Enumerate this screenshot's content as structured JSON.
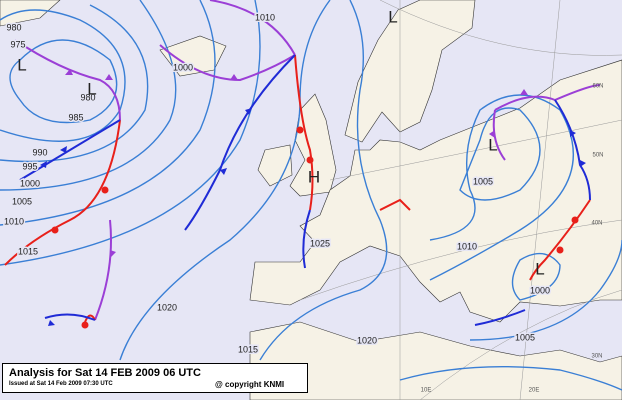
{
  "map": {
    "isobar_labels": [
      "980",
      "975",
      "980",
      "985",
      "990",
      "995",
      "1000",
      "1005",
      "1010",
      "1015",
      "1000",
      "1010",
      "1020",
      "1015",
      "1025",
      "1020",
      "1010",
      "1005",
      "1000",
      "1005"
    ],
    "pressure_centers": [
      "L",
      "L",
      "L",
      "H",
      "L",
      "L"
    ],
    "geo_labels": [
      "60N",
      "50N",
      "40N",
      "30N",
      "10E",
      "20E"
    ]
  },
  "footer": {
    "title": "Analysis for Sat 14 FEB 2009 06 UTC",
    "issued": "Issued at Sat 14 Feb 2009 07:30 UTC",
    "copyright": "@ copyright KNMI"
  }
}
